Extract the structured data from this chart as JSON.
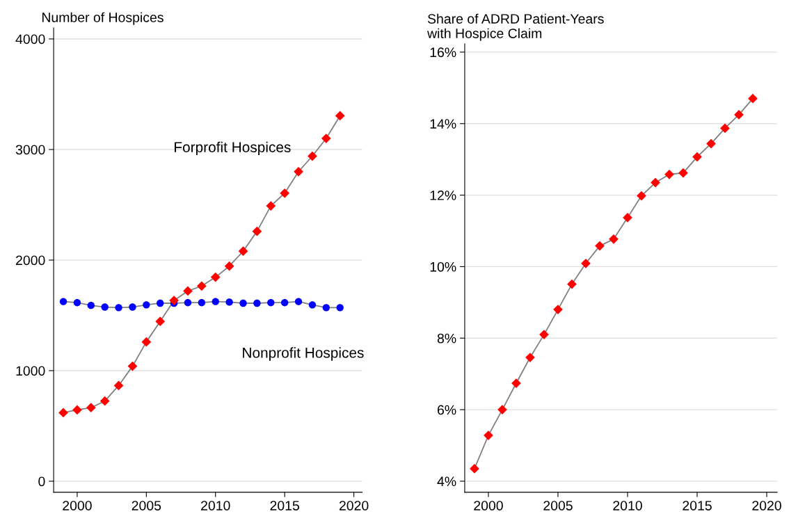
{
  "chart_data": [
    {
      "type": "line",
      "title": "Number of Hospices",
      "grid": "y",
      "x": [
        1999,
        2000,
        2001,
        2002,
        2003,
        2004,
        2005,
        2006,
        2007,
        2008,
        2009,
        2010,
        2011,
        2012,
        2013,
        2014,
        2015,
        2016,
        2017,
        2018,
        2019
      ],
      "series": [
        {
          "name": "Forprofit Hospices",
          "color": "#ff0000",
          "marker": "diamond",
          "values": [
            620,
            645,
            665,
            725,
            865,
            1040,
            1260,
            1445,
            1635,
            1720,
            1765,
            1845,
            1945,
            2080,
            2260,
            2490,
            2605,
            2800,
            2940,
            3100,
            3305
          ]
        },
        {
          "name": "Nonprofit Hospices",
          "color": "#0000ff",
          "marker": "circle",
          "values": [
            1625,
            1615,
            1590,
            1575,
            1570,
            1575,
            1595,
            1610,
            1610,
            1615,
            1615,
            1625,
            1620,
            1610,
            1610,
            1615,
            1615,
            1625,
            1595,
            1570,
            1570
          ]
        }
      ],
      "xlim": [
        1998.3,
        2020.6
      ],
      "xticks": [
        2000,
        2005,
        2010,
        2015,
        2020
      ],
      "ylim": [
        -100,
        4100
      ],
      "yticks": [
        0,
        1000,
        2000,
        3000,
        4000
      ]
    },
    {
      "type": "line",
      "title": "Share of ADRD Patient-Years\nwith Hospice Claim",
      "grid": "y",
      "x": [
        1999,
        2000,
        2001,
        2002,
        2003,
        2004,
        2005,
        2006,
        2007,
        2008,
        2009,
        2010,
        2011,
        2012,
        2013,
        2014,
        2015,
        2016,
        2017,
        2018,
        2019
      ],
      "series": [
        {
          "color": "#ff0000",
          "marker": "diamond",
          "values": [
            4.35,
            5.28,
            6.0,
            6.74,
            7.46,
            8.1,
            8.8,
            9.51,
            10.09,
            10.58,
            10.77,
            11.37,
            11.98,
            12.35,
            12.58,
            12.62,
            13.07,
            13.44,
            13.87,
            14.25,
            14.7
          ]
        }
      ],
      "xlim": [
        1998.3,
        2020.75
      ],
      "xticks": [
        2000,
        2005,
        2010,
        2015,
        2020
      ],
      "ylim": [
        3.69,
        16.23
      ],
      "yticks": [
        {
          "value": 4,
          "label": "4%"
        },
        {
          "value": 6,
          "label": "6%"
        },
        {
          "value": 8,
          "label": "8%"
        },
        {
          "value": 10,
          "label": "10%"
        },
        {
          "value": 12,
          "label": "12%"
        },
        {
          "value": 14,
          "label": "14%"
        },
        {
          "value": 16,
          "label": "16%"
        }
      ]
    }
  ]
}
